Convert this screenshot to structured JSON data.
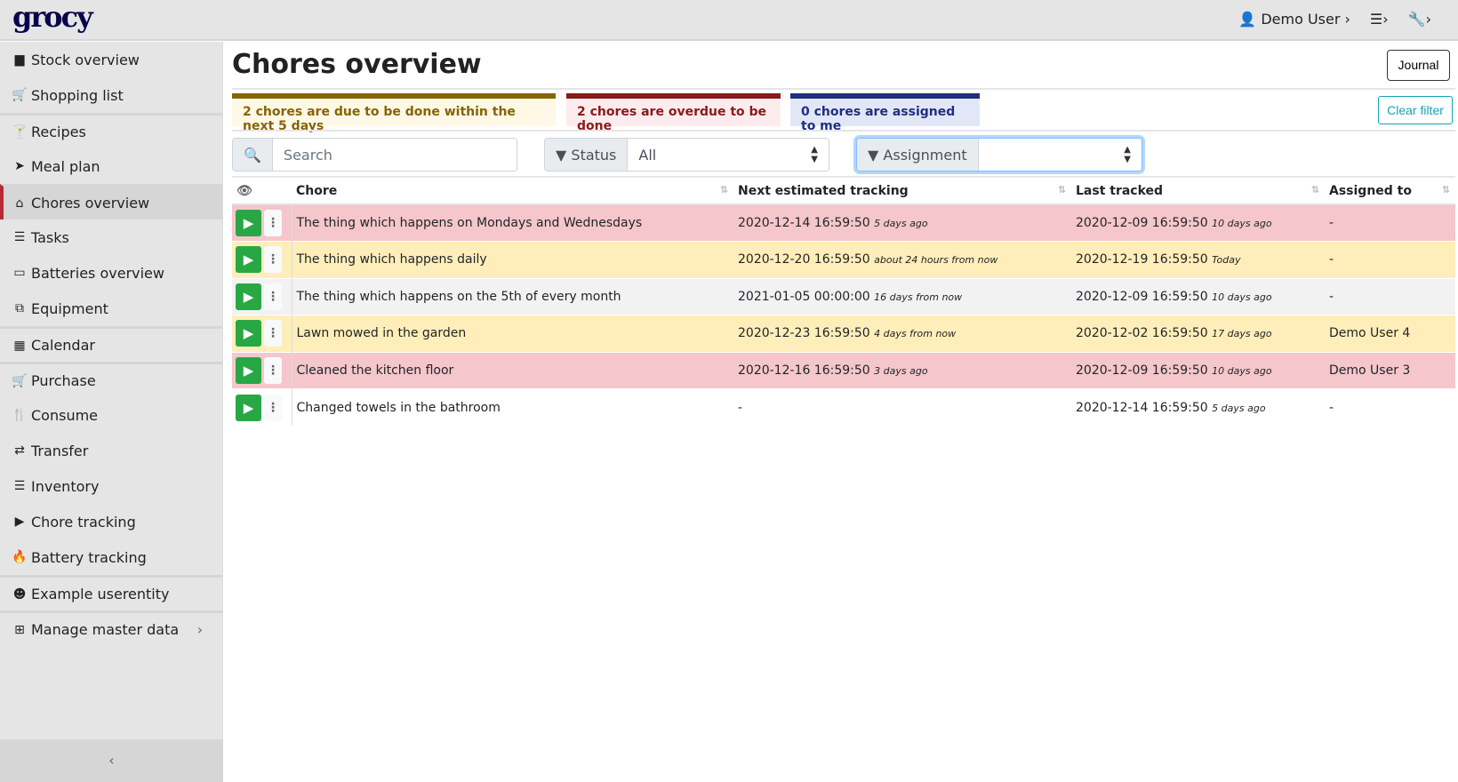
{
  "header": {
    "logo": "grocy",
    "user": "Demo User",
    "settings_icon": "sliders-icon",
    "tools_icon": "wrench-icon"
  },
  "sidebar": {
    "items": [
      {
        "label": "Stock overview",
        "icon": "box-icon",
        "glyph": "▆"
      },
      {
        "label": "Shopping list",
        "icon": "cart-icon",
        "glyph": "🛒"
      },
      {
        "label": "Recipes",
        "icon": "cocktail-icon",
        "glyph": "🍸"
      },
      {
        "label": "Meal plan",
        "icon": "paper-plane-icon",
        "glyph": "➤"
      },
      {
        "label": "Chores overview",
        "icon": "home-icon",
        "glyph": "⌂"
      },
      {
        "label": "Tasks",
        "icon": "tasks-icon",
        "glyph": "☰"
      },
      {
        "label": "Batteries overview",
        "icon": "battery-icon",
        "glyph": "▭"
      },
      {
        "label": "Equipment",
        "icon": "toolbox-icon",
        "glyph": "⧉"
      },
      {
        "label": "Calendar",
        "icon": "calendar-icon",
        "glyph": "▦"
      },
      {
        "label": "Purchase",
        "icon": "cart-icon",
        "glyph": "🛒"
      },
      {
        "label": "Consume",
        "icon": "utensils-icon",
        "glyph": "🍴"
      },
      {
        "label": "Transfer",
        "icon": "exchange-icon",
        "glyph": "⇄"
      },
      {
        "label": "Inventory",
        "icon": "list-icon",
        "glyph": "☰"
      },
      {
        "label": "Chore tracking",
        "icon": "play-icon",
        "glyph": "▶"
      },
      {
        "label": "Battery tracking",
        "icon": "fire-icon",
        "glyph": "🔥"
      },
      {
        "label": "Example userentity",
        "icon": "smile-icon",
        "glyph": "☻"
      },
      {
        "label": "Manage master data",
        "icon": "table-icon",
        "glyph": "⊞"
      }
    ],
    "collapse": "‹"
  },
  "page": {
    "title": "Chores overview",
    "journal": "Journal",
    "clear_filter": "Clear filter"
  },
  "alerts": [
    {
      "text": "2 chores are due to be done within the next 5 days",
      "color": "#e5b944"
    },
    {
      "text": "2 chores are overdue to be done",
      "color": "#b52a2a"
    },
    {
      "text": "0 chores are assigned to me",
      "color": "#4a63b5"
    }
  ],
  "filters": {
    "search_placeholder": "Search",
    "status_label": "Status",
    "status_value": "All",
    "assignment_label": "Assignment",
    "assignment_value": ""
  },
  "table": {
    "columns": [
      "Chore",
      "Next estimated tracking",
      "Last tracked",
      "Assigned to"
    ],
    "rows": [
      {
        "status": "danger",
        "chore": "The thing which happens on Mondays and Wednesdays",
        "next": "2020-12-14 16:59:50",
        "next_rel": "5 days ago",
        "last": "2020-12-09 16:59:50",
        "last_rel": "10 days ago",
        "assigned": "-"
      },
      {
        "status": "warning",
        "chore": "The thing which happens daily",
        "next": "2020-12-20 16:59:50",
        "next_rel": "about 24 hours from now",
        "last": "2020-12-19 16:59:50",
        "last_rel": "Today",
        "assigned": "-"
      },
      {
        "status": "secondary",
        "chore": "The thing which happens on the 5th of every month",
        "next": "2021-01-05 00:00:00",
        "next_rel": "16 days from now",
        "last": "2020-12-09 16:59:50",
        "last_rel": "10 days ago",
        "assigned": "-"
      },
      {
        "status": "warning",
        "chore": "Lawn mowed in the garden",
        "next": "2020-12-23 16:59:50",
        "next_rel": "4 days from now",
        "last": "2020-12-02 16:59:50",
        "last_rel": "17 days ago",
        "assigned": "Demo User 4"
      },
      {
        "status": "danger",
        "chore": "Cleaned the kitchen floor",
        "next": "2020-12-16 16:59:50",
        "next_rel": "3 days ago",
        "last": "2020-12-09 16:59:50",
        "last_rel": "10 days ago",
        "assigned": "Demo User 3"
      },
      {
        "status": "",
        "chore": "Changed towels in the bathroom",
        "next": "-",
        "next_rel": "",
        "last": "2020-12-14 16:59:50",
        "last_rel": "5 days ago",
        "assigned": "-"
      }
    ]
  }
}
